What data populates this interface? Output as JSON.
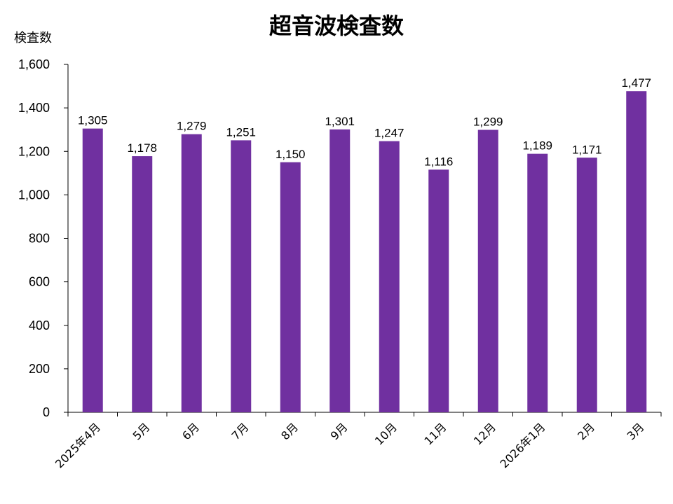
{
  "chart_data": {
    "type": "bar",
    "title": "超音波検査数",
    "ylabel": "検査数",
    "xlabel": "",
    "categories": [
      "2025年4月",
      "5月",
      "6月",
      "7月",
      "8月",
      "9月",
      "10月",
      "11月",
      "12月",
      "2026年1月",
      "2月",
      "3月"
    ],
    "values": [
      1305,
      1178,
      1279,
      1251,
      1150,
      1301,
      1247,
      1116,
      1299,
      1189,
      1171,
      1477
    ],
    "value_labels": [
      "1,305",
      "1,178",
      "1,279",
      "1,251",
      "1,150",
      "1,301",
      "1,247",
      "1,116",
      "1,299",
      "1,189",
      "1,171",
      "1,477"
    ],
    "ylim": [
      0,
      1600
    ],
    "yticks": [
      0,
      200,
      400,
      600,
      800,
      1000,
      1200,
      1400,
      1600
    ],
    "ytick_labels": [
      "0",
      "200",
      "400",
      "600",
      "800",
      "1,000",
      "1,200",
      "1,400",
      "1,600"
    ],
    "grid": false,
    "legend": "none",
    "bar_color": "#7030a0"
  }
}
